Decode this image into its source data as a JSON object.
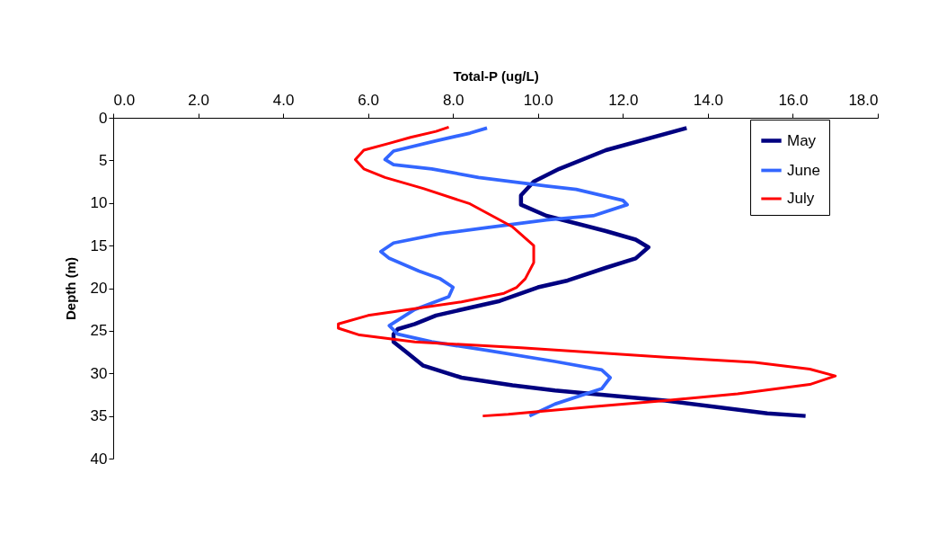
{
  "chart_data": {
    "type": "line",
    "xlabel": "Total-P (ug/L)",
    "ylabel": "Depth (m)",
    "xlim": [
      0,
      18
    ],
    "xticks": [
      {
        "value": 0,
        "label": "0.0"
      },
      {
        "value": 2,
        "label": "2.0"
      },
      {
        "value": 4,
        "label": "4.0"
      },
      {
        "value": 6,
        "label": "6.0"
      },
      {
        "value": 8,
        "label": "8.0"
      },
      {
        "value": 10,
        "label": "10.0"
      },
      {
        "value": 12,
        "label": "12.0"
      },
      {
        "value": 14,
        "label": "14.0"
      },
      {
        "value": 16,
        "label": "16.0"
      },
      {
        "value": 18,
        "label": "18.0"
      }
    ],
    "ylim": [
      40,
      0
    ],
    "yticks": [
      0,
      5,
      10,
      15,
      20,
      25,
      30,
      35,
      40
    ],
    "grid": false,
    "legend": "top right",
    "marker": "none",
    "line_style": "solid",
    "series": [
      {
        "name": "May",
        "color": "#000080",
        "x": [
          13.5,
          11.6,
          10.5,
          9.9,
          9.6,
          9.6,
          10.2,
          11.6,
          12.3,
          12.6,
          12.3,
          11.6,
          10.7,
          10.0,
          9.1,
          7.6,
          7.1,
          6.7,
          6.6,
          6.6,
          6.9,
          7.3,
          8.2,
          9.4,
          10.4,
          13.0,
          15.4,
          16.3
        ],
        "values": [
          1.2,
          3.8,
          6.0,
          7.5,
          9.1,
          10.2,
          11.5,
          13.3,
          14.3,
          15.2,
          16.5,
          17.6,
          19.1,
          19.9,
          21.5,
          23.2,
          24.2,
          24.8,
          25.4,
          26.3,
          27.5,
          29.1,
          30.5,
          31.4,
          32.0,
          33.2,
          34.7,
          35.0
        ]
      },
      {
        "name": "June",
        "color": "#3366ff",
        "x": [
          8.8,
          8.4,
          7.6,
          6.6,
          6.4,
          6.6,
          7.5,
          8.6,
          10.2,
          10.9,
          12.0,
          12.1,
          11.3,
          10.2,
          8.8,
          7.7,
          6.6,
          6.3,
          6.5,
          7.2,
          7.7,
          8.0,
          7.9,
          7.1,
          6.5,
          6.7,
          7.5,
          8.8,
          10.4,
          11.5,
          11.7,
          11.5,
          10.4,
          9.8
        ],
        "values": [
          1.2,
          1.8,
          2.7,
          3.9,
          4.9,
          5.5,
          6.0,
          7.0,
          8.0,
          8.4,
          9.7,
          10.2,
          11.5,
          12.0,
          12.9,
          13.6,
          14.7,
          15.7,
          16.5,
          18.0,
          18.9,
          19.9,
          21.0,
          22.5,
          24.4,
          25.4,
          26.3,
          27.3,
          28.6,
          29.6,
          30.5,
          31.8,
          33.6,
          35.0
        ]
      },
      {
        "name": "July",
        "color": "#ff0000",
        "x": [
          7.9,
          7.6,
          7.0,
          6.5,
          5.9,
          5.7,
          5.9,
          6.4,
          7.3,
          8.4,
          9.4,
          9.9,
          9.9,
          9.7,
          9.5,
          9.2,
          8.2,
          6.7,
          6.0,
          5.3,
          5.3,
          5.8,
          7.1,
          9.6,
          13.0,
          15.1,
          16.4,
          17.0,
          16.4,
          14.7,
          13.0,
          11.3,
          9.3,
          8.7
        ],
        "values": [
          1.1,
          1.6,
          2.3,
          3.0,
          3.8,
          4.9,
          6.0,
          7.0,
          8.3,
          10.1,
          12.8,
          15.0,
          17.0,
          18.9,
          19.9,
          20.6,
          21.6,
          22.7,
          23.2,
          24.2,
          24.7,
          25.5,
          26.3,
          27.0,
          28.1,
          28.7,
          29.5,
          30.3,
          31.3,
          32.4,
          33.2,
          33.9,
          34.8,
          35.0
        ]
      }
    ]
  }
}
